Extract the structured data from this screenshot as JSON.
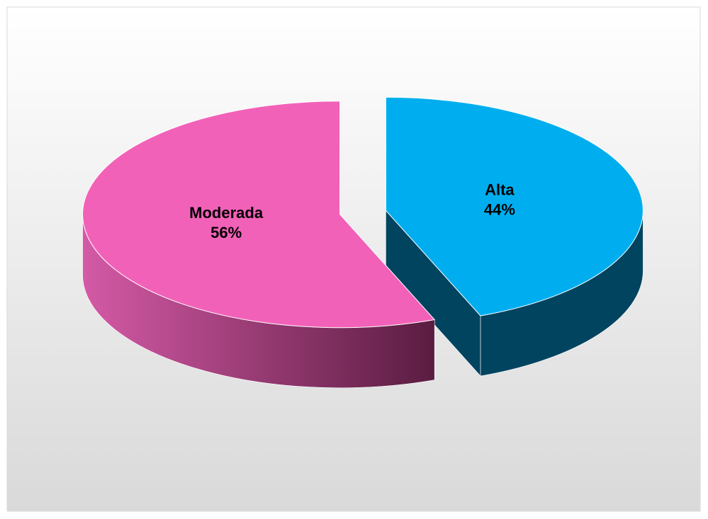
{
  "chart_data": {
    "type": "pie3d",
    "categories": [
      "Alta",
      "Moderada"
    ],
    "values": [
      44,
      56
    ],
    "value_labels": [
      "44%",
      "56%"
    ],
    "colors": [
      "#00aeef",
      "#f261b8"
    ]
  }
}
